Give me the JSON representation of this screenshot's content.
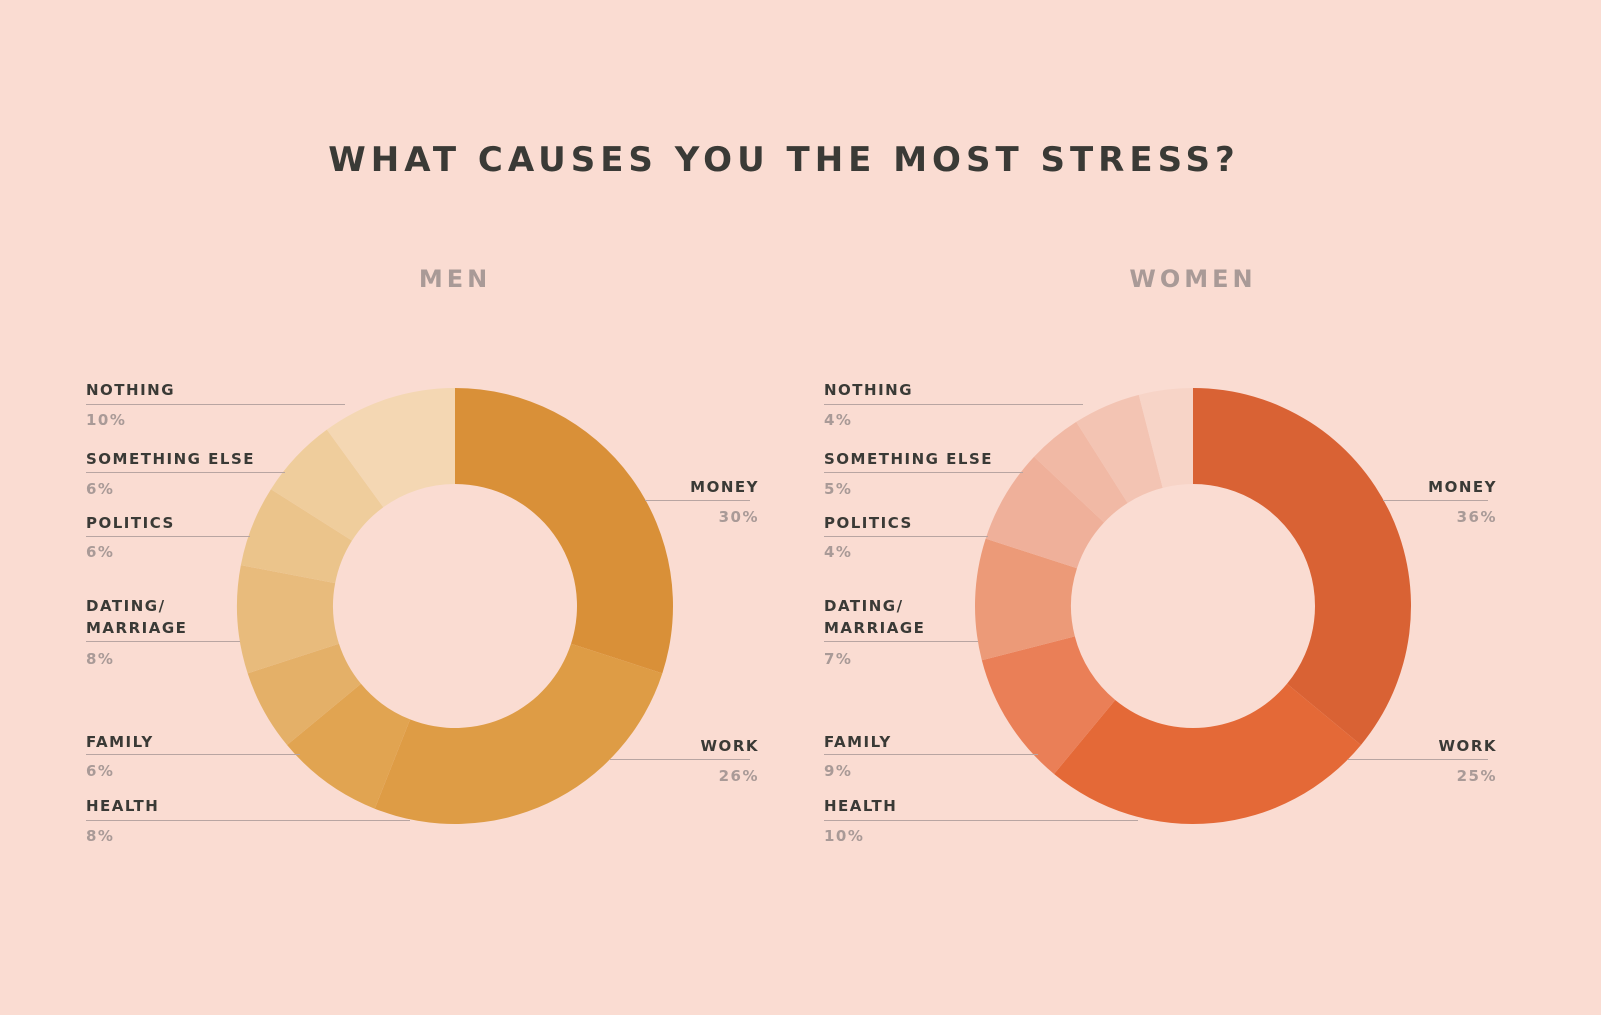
{
  "chart_data": [
    {
      "type": "pie",
      "title": "WHAT CAUSES YOU THE MOST STRESS?",
      "subtitle": "MEN",
      "categories": [
        "MONEY",
        "WORK",
        "HEALTH",
        "FAMILY",
        "DATING/ MARRIAGE",
        "POLITICS",
        "SOMETHING ELSE",
        "NOTHING"
      ],
      "values": [
        30,
        26,
        8,
        6,
        8,
        6,
        6,
        10
      ],
      "labels": [
        "30%",
        "26%",
        "8%",
        "6%",
        "8%",
        "6%",
        "6%",
        "10%"
      ],
      "colors": [
        "#D99038",
        "#DE9C45",
        "#E1A451",
        "#E4B068",
        "#E8BB7C",
        "#EBC48B",
        "#EFCD9C",
        "#F4D7B3"
      ]
    },
    {
      "type": "pie",
      "title": "WHAT CAUSES YOU THE MOST STRESS?",
      "subtitle": "WOMEN",
      "categories": [
        "MONEY",
        "WORK",
        "HEALTH",
        "FAMILY",
        "DATING/ MARRIAGE",
        "POLITICS",
        "SOMETHING ELSE",
        "NOTHING"
      ],
      "values": [
        36,
        25,
        10,
        9,
        7,
        4,
        5,
        4
      ],
      "labels": [
        "36%",
        "25%",
        "10%",
        "9%",
        "7%",
        "4%",
        "5%",
        "4%"
      ],
      "colors": [
        "#D96234",
        "#E46937",
        "#EA7F57",
        "#EC9A78",
        "#EFB09A",
        "#F1B9A5",
        "#F3C4B3",
        "#F7D4C7"
      ]
    }
  ]
}
